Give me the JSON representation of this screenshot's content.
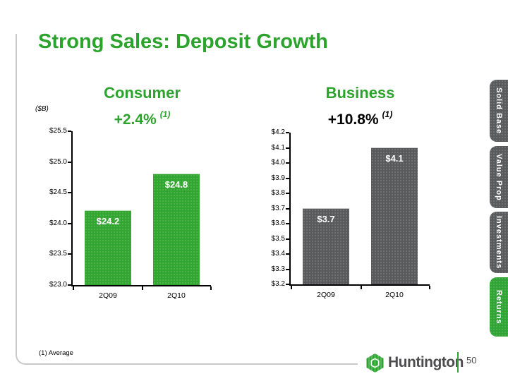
{
  "slide": {
    "title": "Strong Sales: Deposit Growth",
    "units_label": "($B)",
    "footnote": "(1) Average",
    "page_number": "50",
    "logo_text": "Huntington"
  },
  "colors": {
    "brand_green": "#2CA32C",
    "bar_green": "#31A52F",
    "bar_gray": "#58595B",
    "tab_gray": "#58595B",
    "tab_active_green": "#2FA334",
    "border_gray": "#c9c9c9"
  },
  "sidebar": {
    "tabs": [
      {
        "label": "Solid Base",
        "active": false
      },
      {
        "label": "Value Prop",
        "active": false
      },
      {
        "label": "Investments",
        "active": false
      },
      {
        "label": "Returns",
        "active": true
      }
    ]
  },
  "chart_data": [
    {
      "type": "bar",
      "title": "Consumer",
      "growth_label": "+2.4%",
      "growth_ref": "(1)",
      "growth_color": "#2CA32C",
      "ylabel": "($B)",
      "categories": [
        "2Q09",
        "2Q10"
      ],
      "values": [
        24.2,
        24.8
      ],
      "bar_labels": [
        "$24.2",
        "$24.8"
      ],
      "bar_color": "#31A52F",
      "ylim": [
        23.0,
        25.5
      ],
      "ytick_step": 0.5,
      "ytick_labels": [
        "$23.0",
        "$23.5",
        "$24.0",
        "$24.5",
        "$25.0",
        "$25.5"
      ],
      "grid": false,
      "legend": false
    },
    {
      "type": "bar",
      "title": "Business",
      "growth_label": "+10.8%",
      "growth_ref": "(1)",
      "growth_color": "#000000",
      "categories": [
        "2Q09",
        "2Q10"
      ],
      "values": [
        3.7,
        4.1
      ],
      "bar_labels": [
        "$3.7",
        "$4.1"
      ],
      "bar_color": "#58595B",
      "ylim": [
        3.2,
        4.2
      ],
      "ytick_step": 0.1,
      "ytick_labels": [
        "$3.2",
        "$3.3",
        "$3.4",
        "$3.5",
        "$3.6",
        "$3.7",
        "$3.8",
        "$3.9",
        "$4.0",
        "$4.1",
        "$4.2"
      ],
      "grid": false,
      "legend": false
    }
  ]
}
